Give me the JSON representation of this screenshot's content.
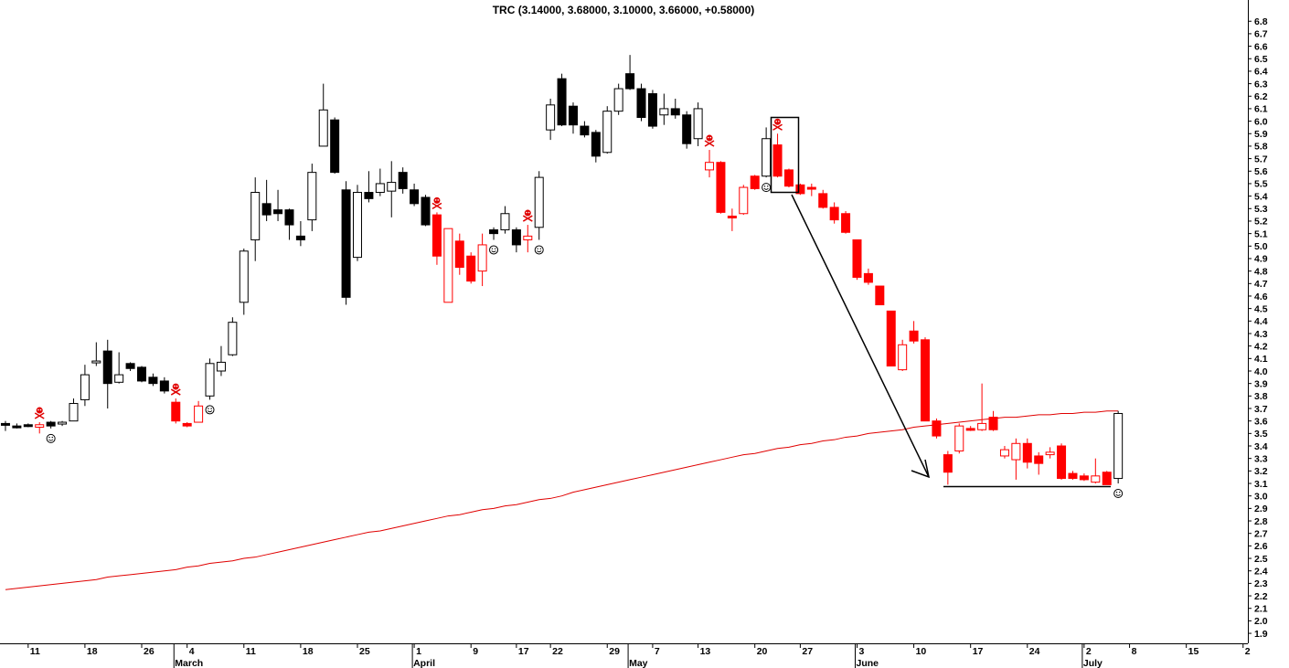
{
  "chart_data": {
    "type": "candlestick",
    "title": "TRC (3.14000, 3.68000, 3.10000, 3.66000, +0.58000)",
    "x": [
      0,
      1,
      2,
      3,
      4,
      5,
      6,
      7,
      8,
      9,
      10,
      11,
      12,
      13,
      14,
      15,
      16,
      17,
      18,
      19,
      20,
      21,
      22,
      23,
      24,
      25,
      26,
      27,
      28,
      29,
      30,
      31,
      32,
      33,
      34,
      35,
      36,
      37,
      38,
      39,
      40,
      41,
      42,
      43,
      44,
      45,
      46,
      47,
      48,
      49,
      50,
      51,
      52,
      53,
      54,
      55,
      56,
      57,
      58,
      59,
      60,
      61,
      62,
      63,
      64,
      65,
      66,
      67,
      68,
      69,
      70,
      71,
      72,
      73,
      74,
      75,
      76,
      77,
      78,
      79,
      80,
      81,
      82,
      83,
      84,
      85,
      86,
      87,
      88,
      89,
      90,
      91,
      92,
      93,
      94,
      95,
      96,
      97,
      98
    ],
    "open": [
      3.58,
      3.56,
      3.57,
      3.55,
      3.59,
      3.58,
      3.6,
      3.77,
      4.07,
      4.16,
      3.91,
      4.06,
      4.03,
      3.95,
      3.92,
      3.75,
      3.58,
      3.59,
      3.8,
      4.0,
      4.13,
      4.55,
      5.05,
      5.34,
      5.29,
      5.29,
      5.08,
      5.21,
      5.8,
      6.01,
      5.45,
      4.91,
      5.43,
      5.43,
      5.44,
      5.59,
      5.45,
      5.39,
      5.25,
      4.55,
      5.04,
      4.92,
      4.8,
      5.13,
      5.13,
      5.13,
      5.05,
      5.15,
      5.93,
      6.34,
      6.12,
      5.96,
      5.91,
      5.75,
      6.08,
      6.38,
      6.26,
      6.22,
      6.05,
      6.1,
      6.05,
      5.86,
      5.61,
      5.67,
      5.24,
      5.26,
      5.56,
      5.56,
      5.81,
      5.61,
      5.49,
      5.47,
      5.42,
      5.31,
      5.26,
      5.05,
      4.78,
      4.68,
      4.48,
      4.01,
      4.32,
      4.25,
      3.6,
      3.33,
      3.36,
      3.54,
      3.53,
      3.63,
      3.32,
      3.29,
      3.42,
      3.32,
      3.33,
      3.4,
      3.18,
      3.16,
      3.11,
      3.19,
      3.14
    ],
    "high": [
      3.6,
      3.58,
      3.58,
      3.59,
      3.6,
      3.6,
      3.78,
      4.05,
      4.23,
      4.25,
      4.15,
      4.07,
      4.04,
      3.98,
      3.95,
      3.78,
      3.59,
      3.76,
      4.1,
      4.2,
      4.43,
      4.98,
      5.55,
      5.53,
      5.45,
      5.3,
      5.2,
      5.66,
      6.3,
      6.03,
      5.52,
      5.49,
      5.6,
      5.62,
      5.68,
      5.63,
      5.5,
      5.41,
      5.27,
      5.14,
      5.1,
      4.95,
      5.1,
      5.15,
      5.32,
      5.15,
      5.17,
      5.6,
      6.18,
      6.38,
      6.15,
      6.0,
      5.93,
      6.12,
      6.3,
      6.53,
      6.3,
      6.25,
      6.22,
      6.18,
      6.08,
      6.15,
      5.77,
      5.68,
      5.3,
      5.49,
      5.57,
      5.95,
      5.9,
      5.62,
      5.5,
      5.5,
      5.45,
      5.35,
      5.28,
      5.05,
      4.82,
      4.68,
      4.48,
      4.25,
      4.4,
      4.27,
      3.62,
      3.36,
      3.58,
      3.56,
      3.9,
      3.68,
      3.4,
      3.46,
      3.46,
      3.35,
      3.39,
      3.42,
      3.2,
      3.18,
      3.3,
      3.2,
      3.68
    ],
    "low": [
      3.52,
      3.54,
      3.55,
      3.5,
      3.54,
      3.56,
      3.6,
      3.72,
      4.04,
      3.7,
      3.9,
      4.0,
      3.91,
      3.88,
      3.82,
      3.58,
      3.55,
      3.59,
      3.77,
      3.96,
      4.12,
      4.45,
      4.88,
      5.2,
      5.2,
      5.05,
      5.0,
      5.12,
      5.8,
      5.58,
      4.53,
      4.88,
      5.35,
      5.4,
      5.23,
      5.42,
      5.32,
      5.16,
      4.85,
      4.55,
      4.77,
      4.7,
      4.68,
      5.05,
      5.1,
      4.95,
      4.95,
      5.05,
      5.85,
      5.96,
      5.9,
      5.87,
      5.67,
      5.74,
      6.05,
      6.25,
      6.0,
      5.94,
      5.97,
      6.02,
      5.78,
      5.8,
      5.55,
      5.26,
      5.12,
      5.25,
      5.45,
      5.55,
      5.55,
      5.47,
      5.41,
      5.4,
      5.3,
      5.18,
      5.1,
      4.73,
      4.69,
      4.53,
      4.04,
      4.0,
      4.22,
      3.6,
      3.46,
      3.09,
      3.34,
      3.52,
      3.52,
      3.52,
      3.3,
      3.13,
      3.22,
      3.17,
      3.3,
      3.13,
      3.13,
      3.12,
      3.1,
      3.09,
      3.1
    ],
    "close": [
      3.57,
      3.56,
      3.56,
      3.57,
      3.56,
      3.59,
      3.74,
      3.97,
      4.08,
      3.9,
      3.97,
      4.02,
      3.92,
      3.9,
      3.84,
      3.6,
      3.56,
      3.72,
      4.06,
      4.07,
      4.39,
      4.96,
      5.43,
      5.25,
      5.26,
      5.17,
      5.05,
      5.59,
      6.09,
      5.59,
      4.59,
      5.43,
      5.38,
      5.5,
      5.51,
      5.46,
      5.34,
      5.17,
      4.92,
      5.14,
      4.83,
      4.72,
      5.01,
      5.1,
      5.26,
      5.01,
      5.08,
      5.55,
      6.13,
      5.97,
      5.97,
      5.89,
      5.72,
      6.08,
      6.26,
      6.26,
      6.03,
      5.96,
      6.1,
      6.05,
      5.82,
      6.1,
      5.67,
      5.27,
      5.23,
      5.47,
      5.46,
      5.86,
      5.56,
      5.48,
      5.42,
      5.46,
      5.31,
      5.21,
      5.11,
      4.75,
      4.71,
      4.53,
      4.04,
      4.21,
      4.24,
      3.6,
      3.48,
      3.19,
      3.56,
      3.53,
      3.58,
      3.53,
      3.37,
      3.42,
      3.27,
      3.26,
      3.35,
      3.14,
      3.14,
      3.13,
      3.16,
      3.09,
      3.66
    ],
    "candle_colors": [
      "black",
      "black",
      "black",
      "red",
      "black",
      "black",
      "black",
      "black",
      "black",
      "black",
      "black",
      "black",
      "black",
      "black",
      "black",
      "red",
      "red",
      "red",
      "black",
      "black",
      "black",
      "black",
      "black",
      "black",
      "black",
      "black",
      "black",
      "black",
      "black",
      "black",
      "black",
      "black",
      "black",
      "black",
      "black",
      "black",
      "black",
      "black",
      "red",
      "red",
      "red",
      "red",
      "red",
      "black",
      "black",
      "black",
      "red",
      "black",
      "black",
      "black",
      "black",
      "black",
      "black",
      "black",
      "black",
      "black",
      "black",
      "black",
      "black",
      "black",
      "black",
      "black",
      "red",
      "red",
      "red",
      "red",
      "red",
      "black",
      "red",
      "red",
      "red",
      "red",
      "red",
      "red",
      "red",
      "red",
      "red",
      "red",
      "red",
      "red",
      "red",
      "red",
      "red",
      "red",
      "red",
      "red",
      "red",
      "red",
      "red",
      "red",
      "red",
      "red",
      "red",
      "red",
      "red",
      "red",
      "red",
      "red",
      "black"
    ],
    "moving_average": {
      "color": "#e00000",
      "values": [
        2.25,
        2.26,
        2.27,
        2.28,
        2.29,
        2.3,
        2.31,
        2.32,
        2.33,
        2.35,
        2.36,
        2.37,
        2.38,
        2.39,
        2.4,
        2.41,
        2.43,
        2.44,
        2.46,
        2.47,
        2.48,
        2.5,
        2.51,
        2.53,
        2.55,
        2.57,
        2.59,
        2.61,
        2.63,
        2.65,
        2.67,
        2.69,
        2.71,
        2.72,
        2.74,
        2.76,
        2.78,
        2.8,
        2.82,
        2.84,
        2.85,
        2.87,
        2.89,
        2.9,
        2.92,
        2.93,
        2.95,
        2.97,
        2.98,
        3.0,
        3.03,
        3.05,
        3.07,
        3.09,
        3.11,
        3.13,
        3.15,
        3.17,
        3.19,
        3.21,
        3.23,
        3.25,
        3.27,
        3.29,
        3.31,
        3.33,
        3.34,
        3.36,
        3.38,
        3.39,
        3.41,
        3.42,
        3.44,
        3.45,
        3.47,
        3.48,
        3.5,
        3.51,
        3.52,
        3.53,
        3.55,
        3.56,
        3.57,
        3.58,
        3.59,
        3.6,
        3.61,
        3.62,
        3.63,
        3.63,
        3.64,
        3.65,
        3.65,
        3.66,
        3.66,
        3.67,
        3.67,
        3.68,
        3.68
      ]
    },
    "sell_signals": [
      3,
      15,
      38,
      46,
      62,
      68
    ],
    "buy_signals": [
      4,
      18,
      43,
      47,
      67,
      98
    ],
    "xlim": [
      -0.48,
      109.42
    ],
    "xticks": [
      {
        "value": 2,
        "label": "11"
      },
      {
        "value": 7,
        "label": "18"
      },
      {
        "value": 12,
        "label": "26"
      },
      {
        "value": 16,
        "label": "4"
      },
      {
        "value": 21,
        "label": "11"
      },
      {
        "value": 26,
        "label": "18"
      },
      {
        "value": 31,
        "label": "25"
      },
      {
        "value": 36,
        "label": "1"
      },
      {
        "value": 41,
        "label": "9"
      },
      {
        "value": 45,
        "label": "17"
      },
      {
        "value": 48,
        "label": "22"
      },
      {
        "value": 53,
        "label": "29"
      },
      {
        "value": 57,
        "label": "7"
      },
      {
        "value": 61,
        "label": "13"
      },
      {
        "value": 66,
        "label": "20"
      },
      {
        "value": 70,
        "label": "27"
      },
      {
        "value": 75,
        "label": "3"
      },
      {
        "value": 80,
        "label": "10"
      },
      {
        "value": 85,
        "label": "17"
      },
      {
        "value": 90,
        "label": "24"
      },
      {
        "value": 95,
        "label": "2"
      },
      {
        "value": 99,
        "label": "8"
      },
      {
        "value": 104,
        "label": "15"
      },
      {
        "value": 109,
        "label": "2"
      }
    ],
    "month_ticks": [
      {
        "value": 15,
        "label": "March"
      },
      {
        "value": 36,
        "label": "April"
      },
      {
        "value": 55,
        "label": "May"
      },
      {
        "value": 75,
        "label": "June"
      },
      {
        "value": 95,
        "label": "July"
      }
    ],
    "ylim": [
      1.82,
      6.97
    ],
    "yticks": [
      1.9,
      {
        "value": 2,
        "label": "2.0"
      },
      2.1,
      2.2,
      2.3,
      2.4,
      2.5,
      2.6,
      2.7,
      2.8,
      2.9,
      {
        "value": 3,
        "label": "3.0"
      },
      3.1,
      3.2,
      3.3,
      3.4,
      3.5,
      3.6,
      3.7,
      3.8,
      3.9,
      {
        "value": 4,
        "label": "4.0"
      },
      4.1,
      4.2,
      4.3,
      4.4,
      4.5,
      4.6,
      4.7,
      4.8,
      4.9,
      {
        "value": 5,
        "label": "5.0"
      },
      5.1,
      5.2,
      5.3,
      5.4,
      5.5,
      5.6,
      5.7,
      5.8,
      5.9,
      {
        "value": 6,
        "label": "6.0"
      },
      6.1,
      6.2,
      6.3,
      6.4,
      6.5,
      6.6,
      6.7,
      6.8
    ]
  }
}
